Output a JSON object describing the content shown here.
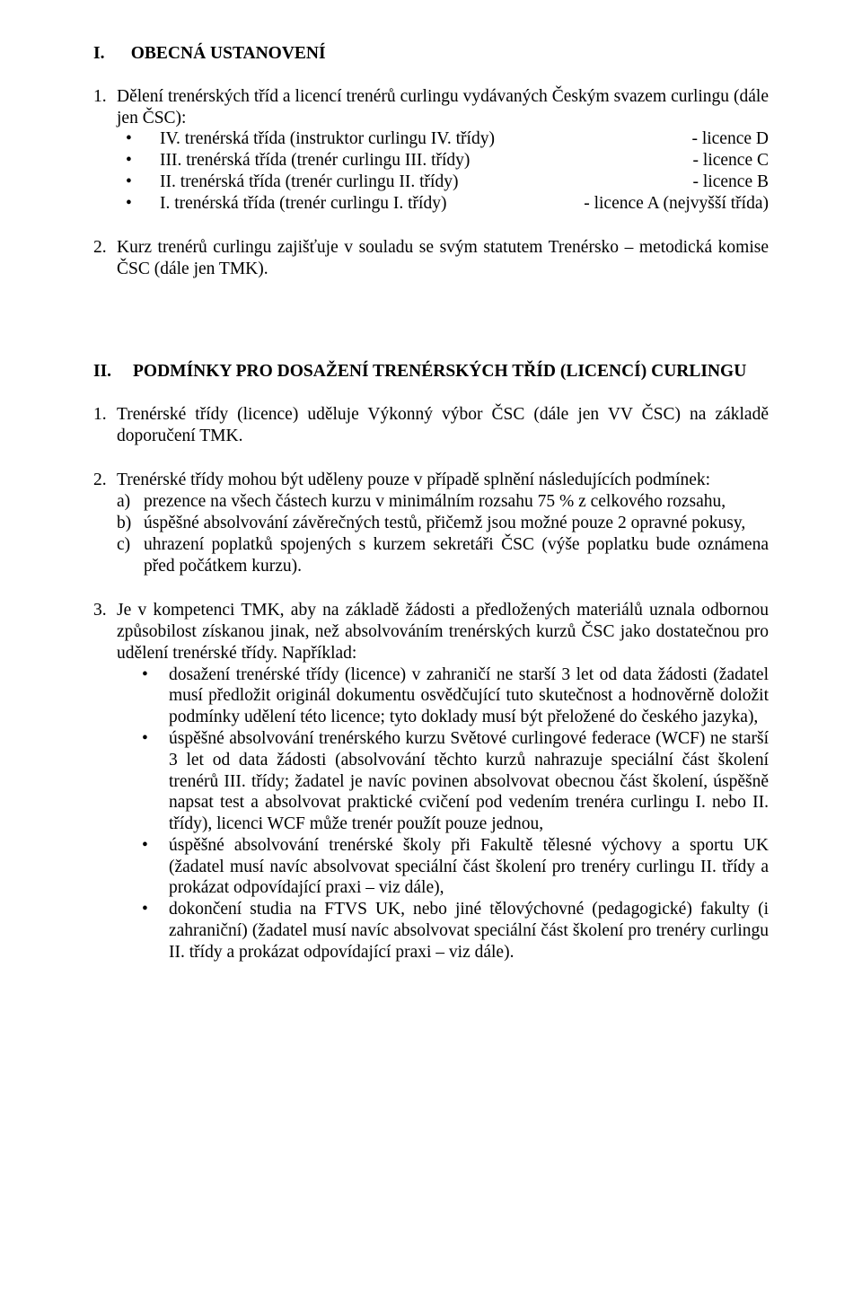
{
  "colors": {
    "text": "#000000",
    "background": "#ffffff"
  },
  "typography": {
    "font_family": "Times New Roman",
    "body_fontsize_pt": 14,
    "heading_weight": "bold",
    "line_height": 1.22,
    "alignment": "justify"
  },
  "section1": {
    "heading_num": "I.",
    "heading_text": "OBECNÁ USTANOVENÍ",
    "item1": {
      "num": "1.",
      "intro": "Dělení trenérských tříd a licencí trenérů curlingu vydávaných Českým svazem curlingu (dále jen ČSC):",
      "rows": [
        {
          "bullet": "•",
          "left": "IV. trenérská třída  (instruktor curlingu IV. třídy)",
          "right": "- licence D"
        },
        {
          "bullet": "•",
          "left": "III. trenérská třída (trenér curlingu III. třídy)",
          "right": "- licence C"
        },
        {
          "bullet": "•",
          "left": "II. trenérská třída  (trenér curlingu II. třídy)",
          "right": "- licence B"
        },
        {
          "bullet": "•",
          "left": "I. trenérská třída   (trenér curlingu I. třídy)",
          "right": "- licence A (nejvyšší třída)"
        }
      ]
    },
    "item2": {
      "num": "2.",
      "text": "Kurz trenérů curlingu zajišťuje v souladu se svým statutem Trenérsko – metodická komise ČSC (dále jen TMK)."
    }
  },
  "section2": {
    "heading_num": "II.",
    "heading_text": "PODMÍNKY PRO DOSAŽENÍ TRENÉRSKÝCH TŘÍD (LICENCÍ) CURLINGU",
    "item1": {
      "num": "1.",
      "text": "Trenérské třídy (licence) uděluje Výkonný výbor ČSC (dále jen VV ČSC) na základě doporučení TMK."
    },
    "item2": {
      "num": "2.",
      "intro": "Trenérské třídy mohou být uděleny pouze v případě splnění následujících podmínek:",
      "subs": [
        {
          "mk": "a)",
          "text": "prezence na všech částech kurzu v minimálním rozsahu 75 % z celkového rozsahu,"
        },
        {
          "mk": "b)",
          "text": "úspěšné absolvování závěrečných testů, přičemž jsou možné pouze 2 opravné pokusy,"
        },
        {
          "mk": "c)",
          "text": "uhrazení poplatků spojených s kurzem sekretáři ČSC (výše poplatku bude oznámena před počátkem kurzu)."
        }
      ]
    },
    "item3": {
      "num": "3.",
      "intro": "Je v kompetenci TMK, aby na základě žádosti a předložených materiálů uznala odbornou způsobilost získanou jinak, než absolvováním trenérských kurzů ČSC jako dostatečnou pro udělení trenérské třídy. Například:",
      "bullets": [
        {
          "mk": "•",
          "text": "dosažení trenérské třídy (licence) v zahraničí ne starší 3 let od data žádosti (žadatel musí předložit originál dokumentu osvědčující tuto skutečnost a hodnověrně doložit podmínky udělení této licence; tyto doklady musí být přeložené do českého jazyka),"
        },
        {
          "mk": "•",
          "text": "úspěšné absolvování trenérského kurzu Světové curlingové federace (WCF) ne starší 3 let od data žádosti (absolvování těchto kurzů nahrazuje speciální část školení trenérů III. třídy; žadatel je navíc povinen absolvovat obecnou část školení, úspěšně napsat test a absolvovat praktické cvičení pod vedením trenéra curlingu I. nebo II. třídy), licenci WCF může trenér použít pouze jednou,"
        },
        {
          "mk": "•",
          "text": "úspěšné absolvování trenérské školy při Fakultě tělesné výchovy a sportu UK (žadatel musí navíc absolvovat speciální část školení pro trenéry curlingu II. třídy a prokázat odpovídající praxi – viz dále),"
        },
        {
          "mk": "•",
          "text": "dokončení studia na FTVS UK, nebo jiné tělovýchovné (pedagogické) fakulty (i zahraniční) (žadatel musí navíc absolvovat speciální část školení pro trenéry curlingu II. třídy a prokázat odpovídající praxi – viz dále)."
        }
      ]
    }
  }
}
